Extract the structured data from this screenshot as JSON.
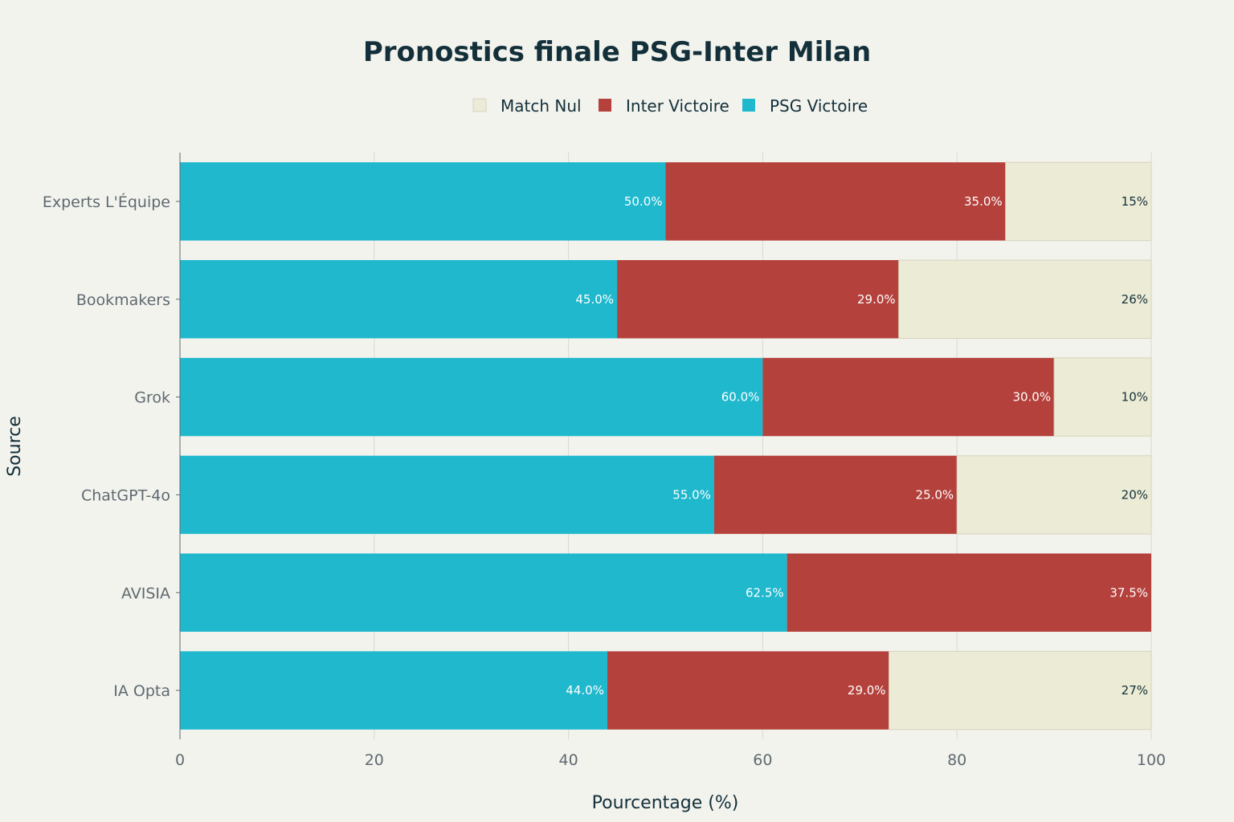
{
  "chart_data": {
    "type": "bar",
    "orientation": "horizontal",
    "stacked": true,
    "title": "Pronostics finale PSG-Inter Milan",
    "xlabel": "Pourcentage (%)",
    "ylabel": "Source",
    "xlim": [
      0,
      100
    ],
    "xticks": [
      "0",
      "20",
      "40",
      "60",
      "80",
      "100"
    ],
    "grid": true,
    "legend_position": "top",
    "categories": [
      "Experts L'Équipe",
      "Bookmakers",
      "Grok",
      "ChatGPT-4o",
      "AVISIA",
      "IA Opta"
    ],
    "series": [
      {
        "name": "PSG Victoire",
        "color": "#1FB8CD",
        "label_color": "#FFFFFF",
        "values": [
          50.0,
          45.0,
          60.0,
          55.0,
          62.5,
          44.0
        ],
        "labels": [
          "50.0%",
          "45.0%",
          "60.0%",
          "55.0%",
          "62.5%",
          "44.0%"
        ]
      },
      {
        "name": "Inter Victoire",
        "color": "#B4413C",
        "label_color": "#FFFFFF",
        "values": [
          35.0,
          29.0,
          30.0,
          25.0,
          37.5,
          29.0
        ],
        "labels": [
          "35.0%",
          "29.0%",
          "30.0%",
          "25.0%",
          "37.5%",
          "29.0%"
        ]
      },
      {
        "name": "Match Nul",
        "color": "#ECEBD5",
        "label_color": "#13303A",
        "values": [
          15,
          26,
          10,
          20,
          0,
          27
        ],
        "labels": [
          "15%",
          "26%",
          "10%",
          "20%",
          "",
          "27%"
        ]
      }
    ],
    "legend_order": [
      "Match Nul",
      "Inter Victoire",
      "PSG Victoire"
    ]
  }
}
